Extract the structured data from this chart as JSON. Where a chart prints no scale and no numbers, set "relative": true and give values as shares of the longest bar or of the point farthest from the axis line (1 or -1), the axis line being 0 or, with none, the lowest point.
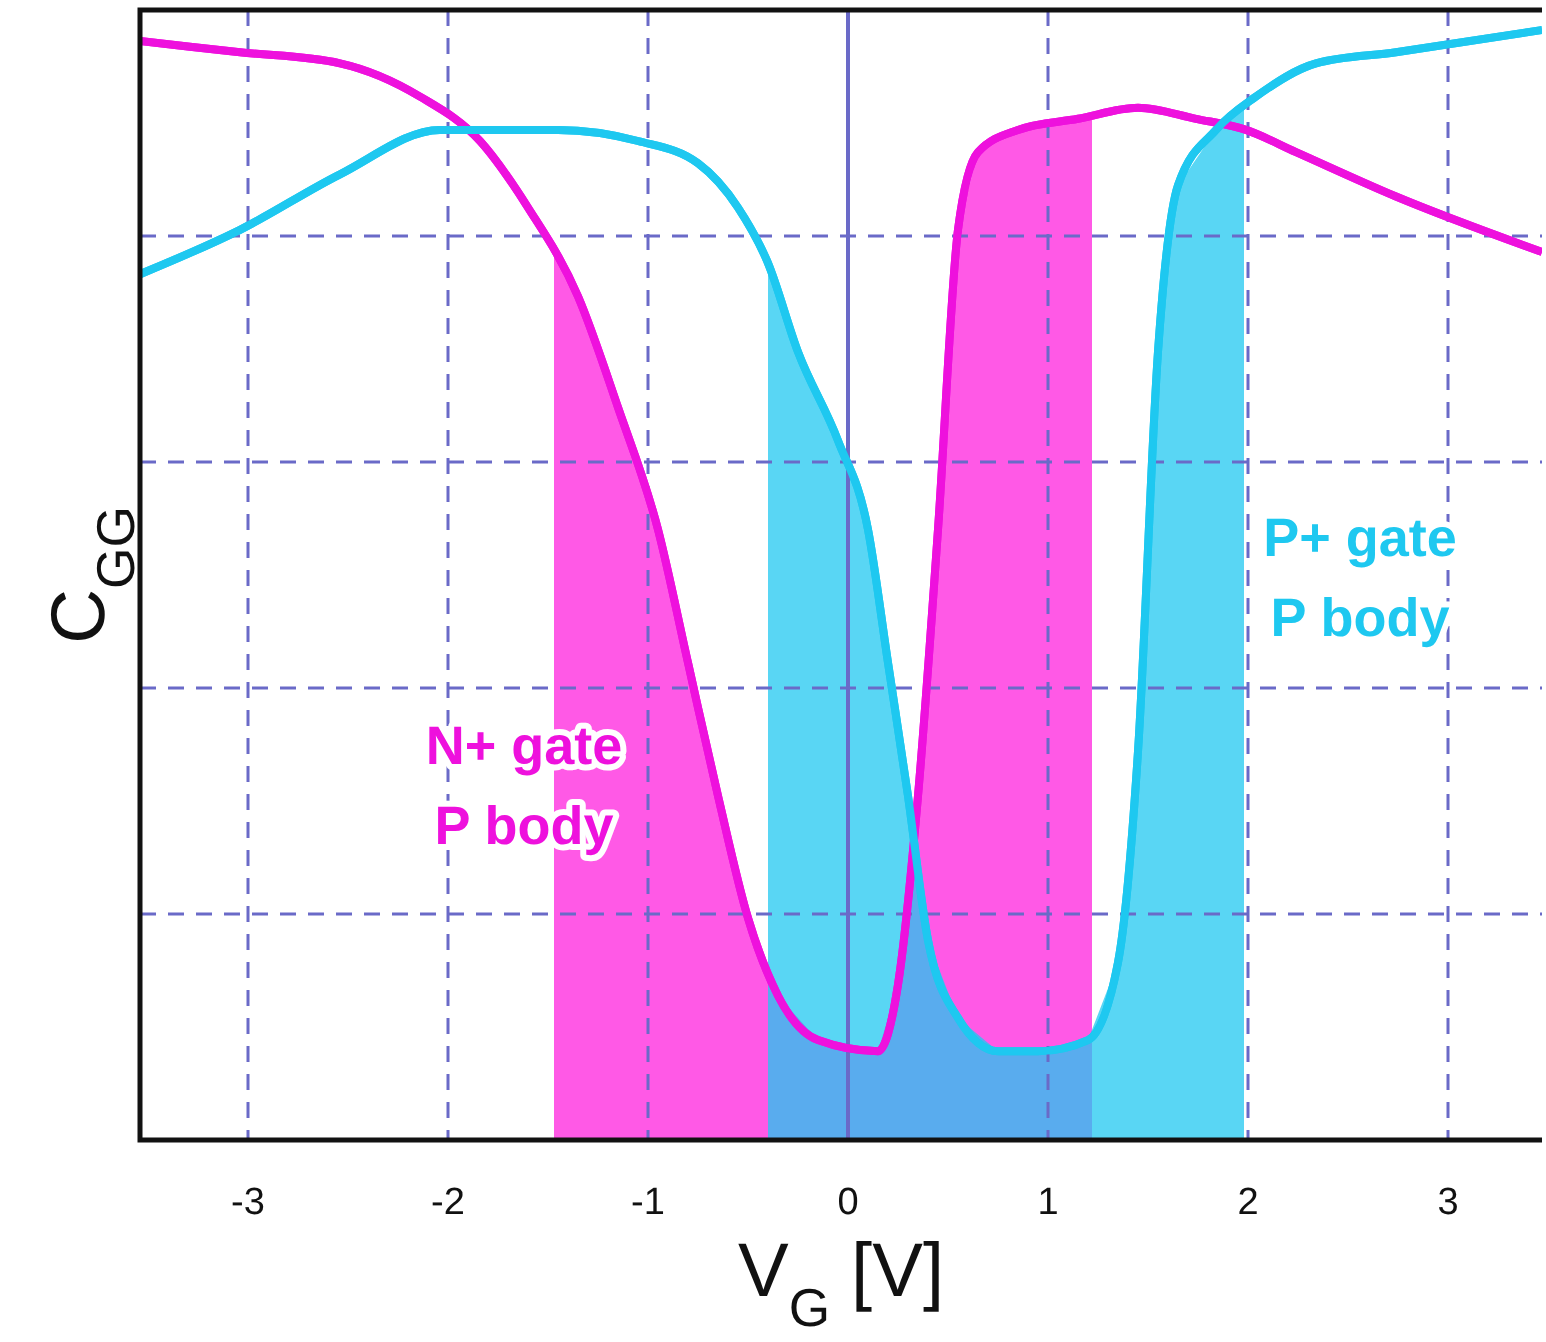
{
  "chart_data": {
    "type": "line",
    "relative": true,
    "xlabel": "V$_{G}$ [V]",
    "ylabel": "C$_{GG}$",
    "xlim": [
      -3.54,
      3.47
    ],
    "xticks": [
      -3,
      -2,
      -1,
      0,
      1,
      2,
      3
    ],
    "grid": true,
    "ref_lines": [
      {
        "axis": "x",
        "value": 0,
        "color": "#6a6ac8",
        "line_style": "solid"
      }
    ],
    "series": [
      {
        "type": "area",
        "color": "#ff22dd",
        "x": [
          -1.47,
          -1.35,
          -1.15,
          -0.95,
          -0.8,
          -0.65,
          -0.5,
          -0.35,
          -0.15,
          0.15,
          0.25,
          0.35,
          0.45,
          0.55,
          0.65,
          0.85,
          1.15,
          1.22
        ],
        "values": [
          0.8,
          0.76,
          0.66,
          0.55,
          0.43,
          0.31,
          0.2,
          0.13,
          0.09,
          0.08,
          0.14,
          0.31,
          0.55,
          0.82,
          0.89,
          0.91,
          0.92,
          0.92
        ]
      },
      {
        "type": "area",
        "color": "#22c8f0",
        "x": [
          -0.4,
          -0.25,
          -0.05,
          0.1,
          0.2,
          0.3,
          0.4,
          0.55,
          0.75,
          0.95,
          1.2,
          1.35,
          1.45,
          1.55,
          1.65,
          1.84,
          1.98
        ],
        "values": [
          0.79,
          0.71,
          0.63,
          0.55,
          0.43,
          0.31,
          0.18,
          0.11,
          0.08,
          0.08,
          0.09,
          0.16,
          0.35,
          0.71,
          0.86,
          0.91,
          0.93
        ]
      },
      {
        "name": "N+ gate P body",
        "color": "#ee11dd",
        "x": [
          -3.54,
          -3.04,
          -2.54,
          -2.14,
          -1.84,
          -1.6,
          -1.35,
          -1.15,
          -0.95,
          -0.8,
          -0.65,
          -0.5,
          -0.35,
          -0.15,
          0.15,
          0.25,
          0.35,
          0.45,
          0.55,
          0.65,
          0.85,
          1.15,
          1.45,
          1.74,
          1.99,
          2.24,
          2.74,
          3.47
        ],
        "values": [
          0.99,
          0.98,
          0.97,
          0.94,
          0.9,
          0.84,
          0.76,
          0.66,
          0.55,
          0.43,
          0.31,
          0.2,
          0.13,
          0.09,
          0.08,
          0.14,
          0.31,
          0.55,
          0.82,
          0.89,
          0.91,
          0.92,
          0.93,
          0.92,
          0.91,
          0.89,
          0.85,
          0.8
        ]
      },
      {
        "name": "P+ gate P body",
        "color": "#1ec8f0",
        "x": [
          -3.54,
          -3.04,
          -2.54,
          -2.04,
          -1.45,
          -1.05,
          -0.75,
          -0.55,
          -0.4,
          -0.25,
          -0.05,
          0.1,
          0.2,
          0.3,
          0.4,
          0.55,
          0.75,
          0.95,
          1.2,
          1.35,
          1.45,
          1.55,
          1.65,
          1.84,
          2.04,
          2.34,
          2.74,
          3.47
        ],
        "values": [
          0.78,
          0.82,
          0.87,
          0.91,
          0.91,
          0.9,
          0.88,
          0.84,
          0.79,
          0.71,
          0.63,
          0.55,
          0.43,
          0.31,
          0.18,
          0.11,
          0.08,
          0.08,
          0.09,
          0.16,
          0.35,
          0.71,
          0.86,
          0.91,
          0.94,
          0.97,
          0.98,
          1.0
        ]
      }
    ]
  }
}
